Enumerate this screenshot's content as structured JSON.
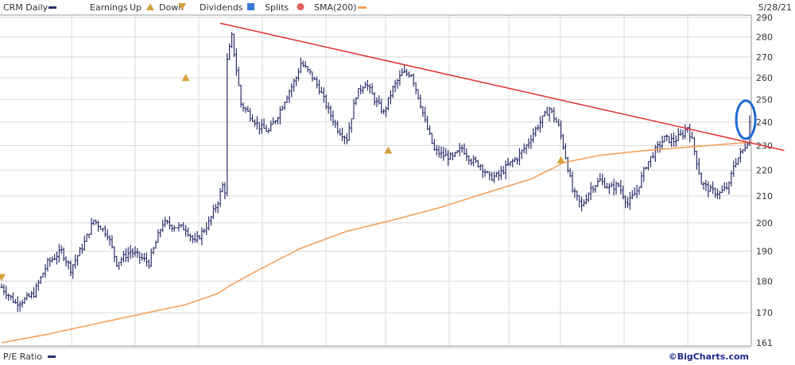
{
  "header": {
    "symbol_label": "CRM Daily",
    "earnings_label": "Earnings",
    "up_label": "Up",
    "down_label": "Down",
    "dividends_label": "Dividends",
    "splits_label": "Splits",
    "sma_label": "SMA(200)",
    "date_label": "5/28/21"
  },
  "footer": {
    "pe_label": "P/E Ratio",
    "credit": "©BigCharts.com"
  },
  "colors": {
    "price_bars": "#2b2f6b",
    "sma": "#f5a05a",
    "trendline": "#e03030",
    "highlight_ellipse": "#1e6ad8",
    "earnings_marker": "#d4a23a",
    "grid": "#d8d8d8"
  },
  "chart_data": {
    "type": "ohlc",
    "y_scale": "log",
    "ylim": [
      161,
      290
    ],
    "yticks": [
      161,
      170,
      180,
      190,
      200,
      210,
      220,
      230,
      240,
      250,
      260,
      270,
      280,
      290
    ],
    "bar_count": 300,
    "close_anchors": [
      [
        0,
        178
      ],
      [
        6,
        173
      ],
      [
        10,
        174
      ],
      [
        14,
        176
      ],
      [
        20,
        186
      ],
      [
        26,
        190
      ],
      [
        30,
        184
      ],
      [
        36,
        193
      ],
      [
        40,
        201
      ],
      [
        46,
        196
      ],
      [
        50,
        186
      ],
      [
        56,
        190
      ],
      [
        60,
        188
      ],
      [
        64,
        186
      ],
      [
        70,
        200
      ],
      [
        74,
        199
      ],
      [
        80,
        198
      ],
      [
        84,
        193
      ],
      [
        90,
        200
      ],
      [
        94,
        208
      ],
      [
        96,
        214
      ],
      [
        97,
        212
      ],
      [
        98,
        268
      ],
      [
        100,
        280
      ],
      [
        104,
        248
      ],
      [
        108,
        243
      ],
      [
        112,
        238
      ],
      [
        116,
        236
      ],
      [
        120,
        243
      ],
      [
        124,
        252
      ],
      [
        128,
        260
      ],
      [
        130,
        267
      ],
      [
        134,
        262
      ],
      [
        138,
        255
      ],
      [
        142,
        245
      ],
      [
        146,
        237
      ],
      [
        150,
        233
      ],
      [
        154,
        252
      ],
      [
        158,
        258
      ],
      [
        162,
        250
      ],
      [
        166,
        244
      ],
      [
        170,
        255
      ],
      [
        174,
        262
      ],
      [
        178,
        262
      ],
      [
        182,
        248
      ],
      [
        184,
        240
      ],
      [
        188,
        228
      ],
      [
        192,
        226
      ],
      [
        196,
        225
      ],
      [
        200,
        229
      ],
      [
        204,
        224
      ],
      [
        208,
        222
      ],
      [
        212,
        217
      ],
      [
        216,
        218
      ],
      [
        220,
        222
      ],
      [
        224,
        225
      ],
      [
        228,
        230
      ],
      [
        232,
        237
      ],
      [
        236,
        243
      ],
      [
        238,
        246
      ],
      [
        242,
        238
      ],
      [
        244,
        230
      ],
      [
        248,
        212
      ],
      [
        252,
        206
      ],
      [
        256,
        213
      ],
      [
        260,
        216
      ],
      [
        264,
        213
      ],
      [
        268,
        214
      ],
      [
        272,
        207
      ],
      [
        276,
        212
      ],
      [
        280,
        222
      ],
      [
        284,
        228
      ],
      [
        288,
        233
      ],
      [
        292,
        232
      ],
      [
        296,
        235
      ],
      [
        298,
        238
      ],
      [
        300,
        232
      ],
      [
        304,
        215
      ],
      [
        308,
        212
      ],
      [
        312,
        211
      ],
      [
        316,
        214
      ],
      [
        318,
        222
      ],
      [
        322,
        228
      ],
      [
        324,
        232
      ],
      [
        325,
        240
      ]
    ],
    "sma_anchors": [
      [
        0,
        161
      ],
      [
        20,
        163.5
      ],
      [
        40,
        166.5
      ],
      [
        60,
        169.5
      ],
      [
        80,
        172.5
      ],
      [
        94,
        176
      ],
      [
        98,
        178
      ],
      [
        110,
        183
      ],
      [
        130,
        191
      ],
      [
        150,
        197
      ],
      [
        170,
        201
      ],
      [
        190,
        205.5
      ],
      [
        210,
        211
      ],
      [
        230,
        216.5
      ],
      [
        240,
        221
      ],
      [
        244,
        223
      ],
      [
        260,
        226
      ],
      [
        280,
        228
      ],
      [
        300,
        229.5
      ],
      [
        320,
        231
      ],
      [
        325,
        231.5
      ]
    ],
    "trendline": {
      "from": [
        95,
        287
      ],
      "to": [
        340,
        228
      ]
    },
    "earnings_markers": [
      {
        "bar": 0,
        "direction": "down",
        "value": 181
      },
      {
        "bar": 80,
        "direction": "up",
        "value": 260
      },
      {
        "bar": 168,
        "direction": "up",
        "value": 228
      },
      {
        "bar": 243,
        "direction": "up",
        "value": 224
      }
    ],
    "highlight": {
      "bar": 324,
      "value": 240
    }
  }
}
